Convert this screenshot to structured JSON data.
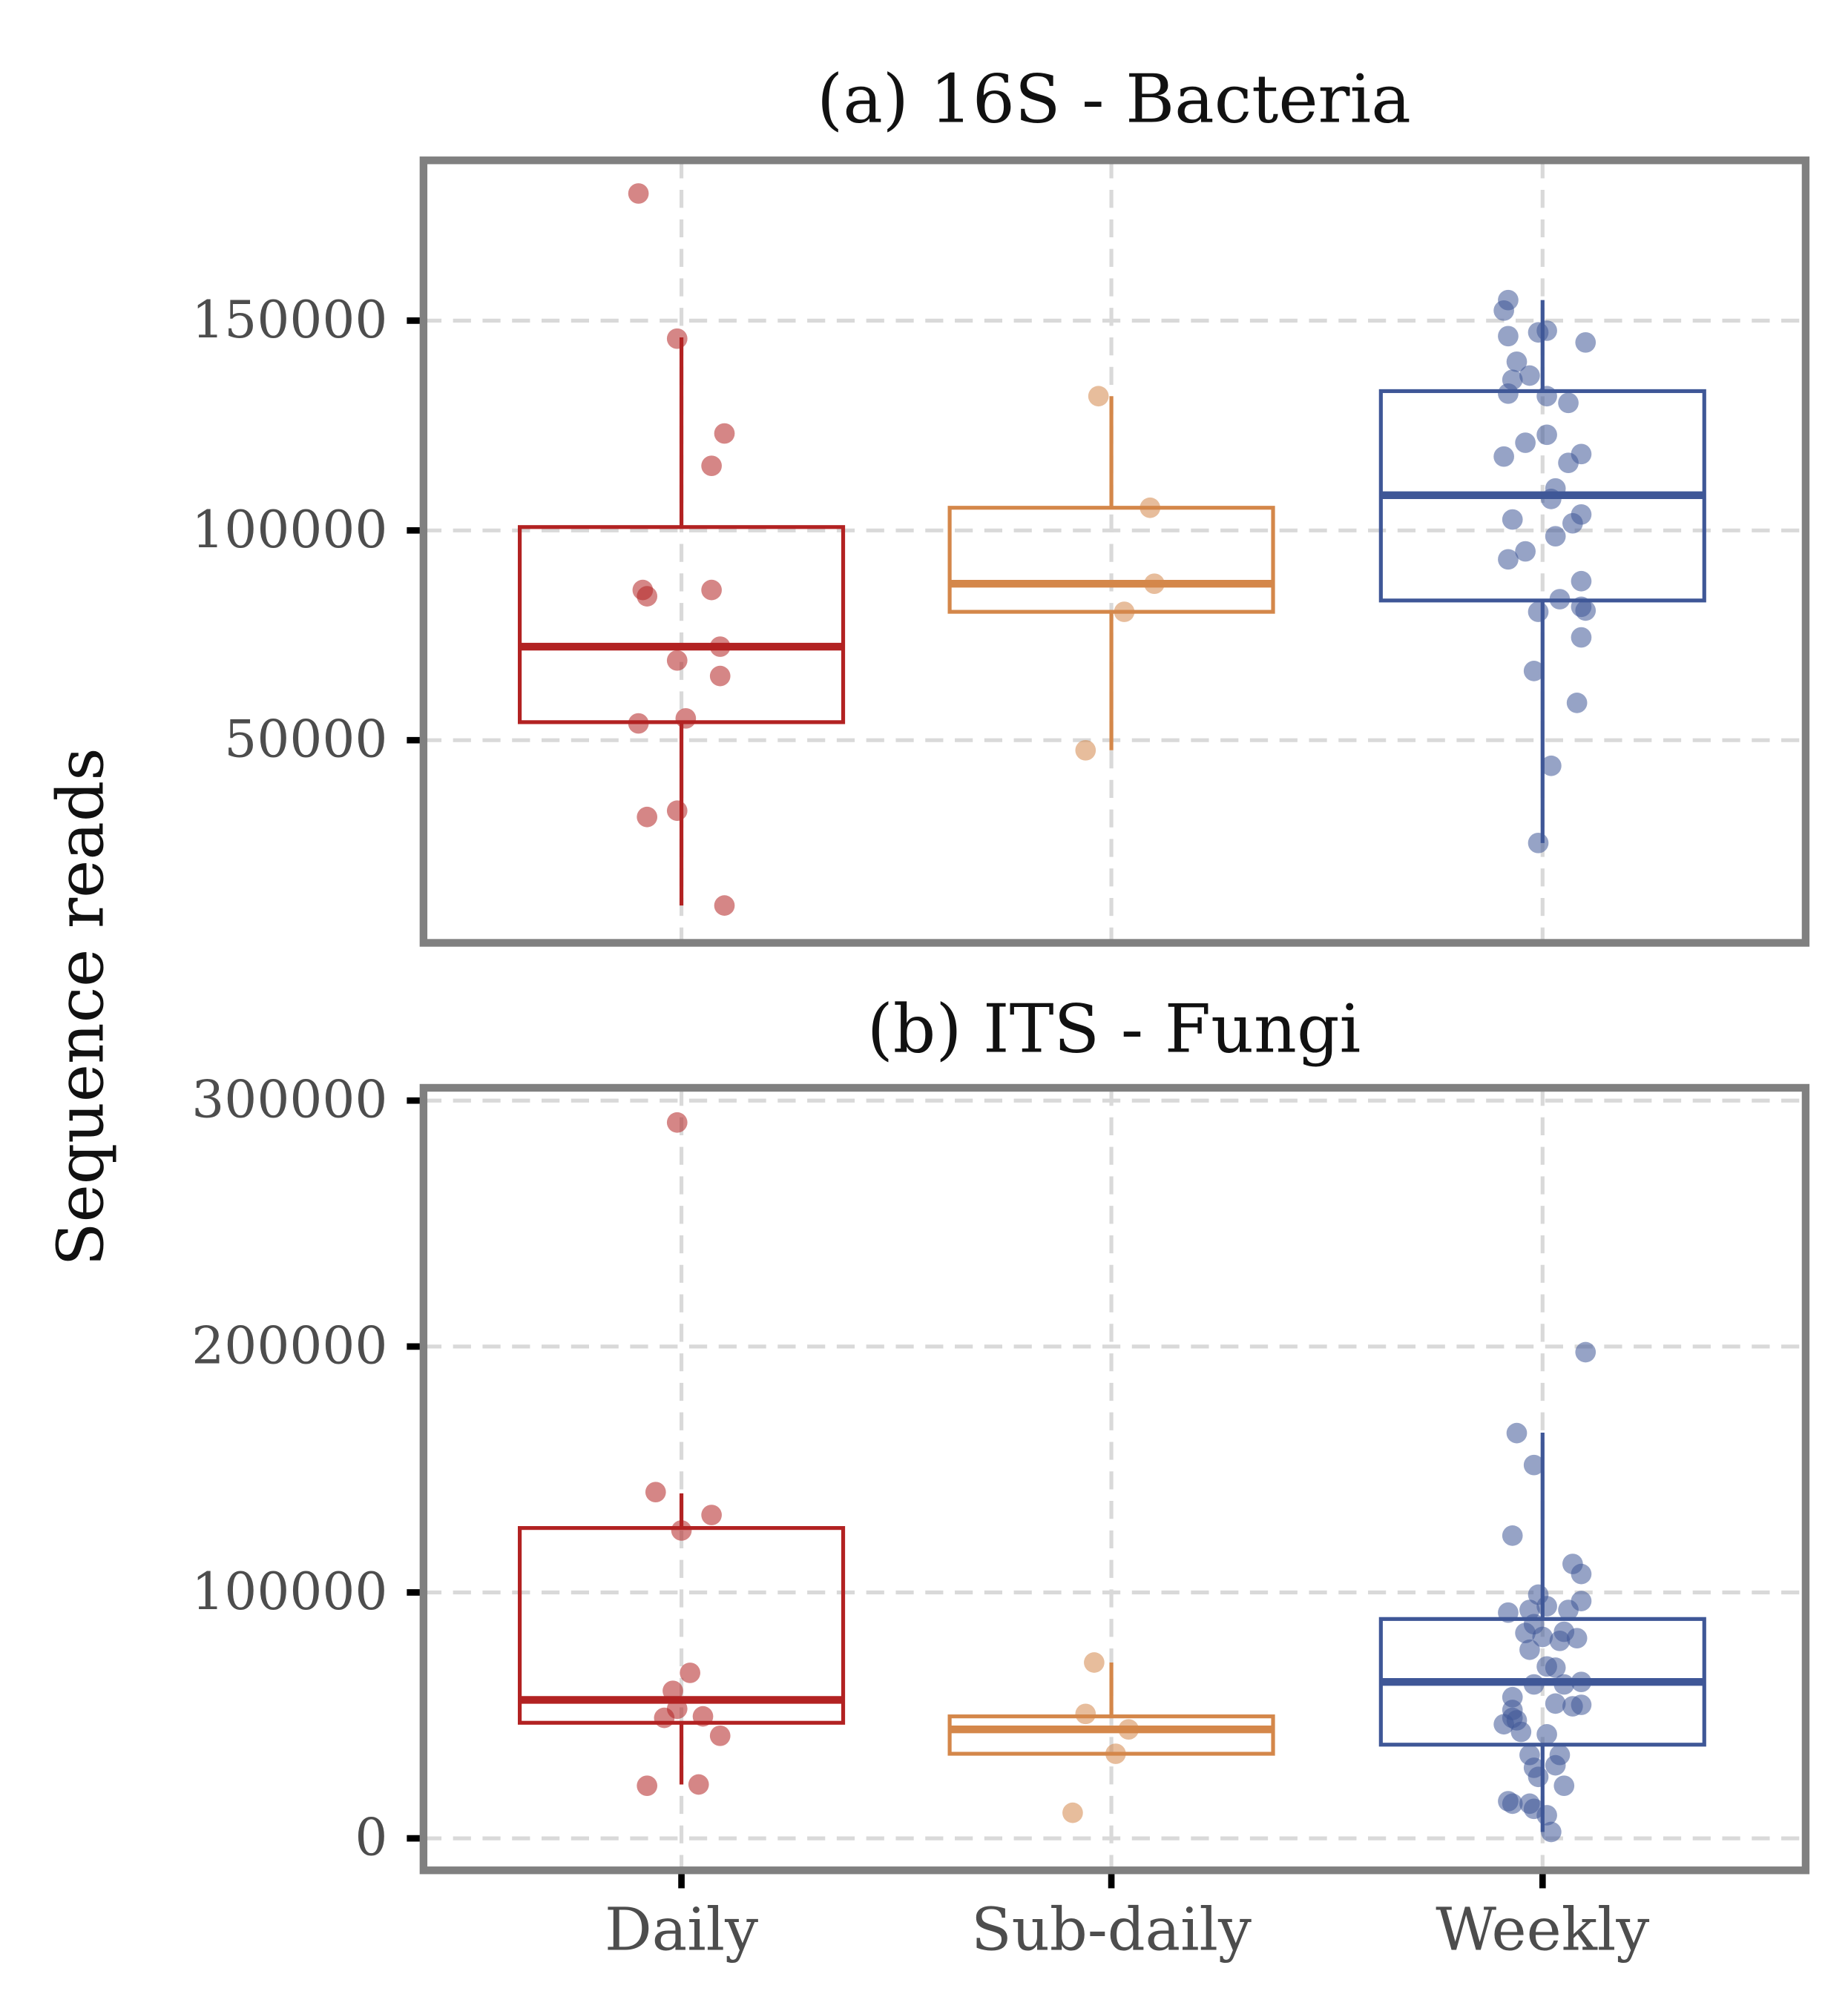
{
  "chart_data": {
    "type": "box",
    "ylabel": "Sequence reads",
    "categories": [
      "Daily",
      "Sub-daily",
      "Weekly"
    ],
    "colors": {
      "Daily": "#b22222",
      "Sub-daily": "#d4874a",
      "Weekly": "#3f5797"
    },
    "grid": true,
    "note": "point x-values are jitter offsets in category units",
    "panels": [
      {
        "title": "(a) 16S - Bacteria",
        "ylim": [
          1700,
          188200
        ],
        "yticks": [
          50000,
          100000,
          150000
        ],
        "ytick_labels": [
          "50000",
          "100000",
          "150000"
        ],
        "boxes": [
          {
            "q1": 54300,
            "median": 72300,
            "q3": 100800,
            "whisker_low": 10600,
            "whisker_high": 146000
          },
          {
            "q1": 80600,
            "median": 87300,
            "q3": 105400,
            "whisker_low": 47600,
            "whisker_high": 132000
          },
          {
            "q1": 83300,
            "median": 108400,
            "q3": 133200,
            "whisker_low": 25500,
            "whisker_high": 154900
          }
        ],
        "points": [
          [
            [
              -0.1,
              180300
            ],
            [
              -0.01,
              145700
            ],
            [
              0.1,
              123100
            ],
            [
              0.07,
              115400
            ],
            [
              -0.09,
              85800
            ],
            [
              -0.08,
              84300
            ],
            [
              0.07,
              85800
            ],
            [
              0.09,
              72300
            ],
            [
              -0.01,
              69000
            ],
            [
              0.09,
              65300
            ],
            [
              0.01,
              55200
            ],
            [
              -0.1,
              54000
            ],
            [
              -0.08,
              31700
            ],
            [
              -0.01,
              33200
            ],
            [
              0.1,
              10600
            ]
          ],
          [
            [
              -0.03,
              132000
            ],
            [
              0.09,
              105400
            ],
            [
              0.1,
              87300
            ],
            [
              0.03,
              80600
            ],
            [
              -0.06,
              47600
            ]
          ],
          [
            [
              -0.08,
              154900
            ],
            [
              -0.09,
              152400
            ],
            [
              -0.08,
              146300
            ],
            [
              -0.01,
              147200
            ],
            [
              0.01,
              147600
            ],
            [
              0.1,
              144800
            ],
            [
              -0.06,
              140200
            ],
            [
              -0.03,
              136900
            ],
            [
              -0.07,
              135900
            ],
            [
              -0.08,
              132600
            ],
            [
              0.01,
              132000
            ],
            [
              0.06,
              130400
            ],
            [
              0.01,
              122800
            ],
            [
              -0.04,
              120900
            ],
            [
              -0.09,
              117600
            ],
            [
              0.09,
              118200
            ],
            [
              0.06,
              116100
            ],
            [
              0.03,
              110000
            ],
            [
              0.02,
              107500
            ],
            [
              0.09,
              103800
            ],
            [
              -0.07,
              102600
            ],
            [
              0.07,
              101700
            ],
            [
              0.03,
              98600
            ],
            [
              -0.04,
              95000
            ],
            [
              -0.08,
              93100
            ],
            [
              0.09,
              87900
            ],
            [
              0.04,
              83600
            ],
            [
              0.09,
              81800
            ],
            [
              0.1,
              80900
            ],
            [
              -0.01,
              80600
            ],
            [
              0.09,
              74500
            ],
            [
              -0.02,
              66500
            ],
            [
              0.08,
              58900
            ],
            [
              0.02,
              43900
            ],
            [
              -0.01,
              25500
            ]
          ]
        ]
      },
      {
        "title": "(b) ITS - Fungi",
        "ylim": [
          -13000,
          305200
        ],
        "yticks": [
          0,
          100000,
          200000,
          300000
        ],
        "ytick_labels": [
          "0",
          "100000",
          "200000",
          "300000"
        ],
        "boxes": [
          {
            "q1": 47000,
            "median": 56300,
            "q3": 126200,
            "whisker_low": 21900,
            "whisker_high": 140300
          },
          {
            "q1": 34400,
            "median": 44300,
            "q3": 49600,
            "whisker_low": 34400,
            "whisker_high": 71500
          },
          {
            "q1": 38100,
            "median": 63600,
            "q3": 89200,
            "whisker_low": 2600,
            "whisker_high": 165000
          }
        ],
        "points": [
          [
            [
              -0.01,
              291100
            ],
            [
              -0.06,
              140800
            ],
            [
              0.07,
              131500
            ],
            [
              0.0,
              125200
            ],
            [
              0.02,
              67300
            ],
            [
              -0.02,
              60000
            ],
            [
              -0.01,
              52700
            ],
            [
              -0.04,
              49000
            ],
            [
              0.05,
              49600
            ],
            [
              0.09,
              41700
            ],
            [
              -0.08,
              21400
            ],
            [
              0.04,
              21900
            ]
          ],
          [
            [
              -0.04,
              71500
            ],
            [
              -0.06,
              50600
            ],
            [
              0.04,
              44300
            ],
            [
              0.01,
              34400
            ],
            [
              -0.09,
              10400
            ]
          ],
          [
            [
              0.1,
              197700
            ],
            [
              -0.06,
              164800
            ],
            [
              -0.02,
              151800
            ],
            [
              -0.07,
              123100
            ],
            [
              0.07,
              111600
            ],
            [
              0.09,
              107500
            ],
            [
              -0.01,
              99100
            ],
            [
              0.09,
              96500
            ],
            [
              0.01,
              94400
            ],
            [
              -0.08,
              91800
            ],
            [
              -0.03,
              92900
            ],
            [
              0.06,
              92900
            ],
            [
              -0.02,
              87100
            ],
            [
              0.05,
              84000
            ],
            [
              -0.04,
              83500
            ],
            [
              0.0,
              81900
            ],
            [
              0.08,
              81400
            ],
            [
              0.04,
              80300
            ],
            [
              -0.03,
              76700
            ],
            [
              0.01,
              69900
            ],
            [
              0.03,
              69400
            ],
            [
              -0.02,
              62600
            ],
            [
              0.05,
              62600
            ],
            [
              0.09,
              63600
            ],
            [
              -0.07,
              57400
            ],
            [
              0.03,
              54800
            ],
            [
              0.07,
              53700
            ],
            [
              0.09,
              54300
            ],
            [
              -0.07,
              52200
            ],
            [
              -0.07,
              49000
            ],
            [
              -0.06,
              48000
            ],
            [
              -0.09,
              46400
            ],
            [
              -0.05,
              43300
            ],
            [
              0.01,
              42300
            ],
            [
              -0.03,
              33900
            ],
            [
              0.04,
              33900
            ],
            [
              0.03,
              29700
            ],
            [
              -0.02,
              28700
            ],
            [
              -0.01,
              25000
            ],
            [
              0.05,
              21400
            ],
            [
              -0.08,
              15100
            ],
            [
              -0.07,
              14100
            ],
            [
              -0.03,
              14100
            ],
            [
              -0.02,
              12000
            ],
            [
              0.01,
              9400
            ],
            [
              0.02,
              2600
            ]
          ]
        ]
      }
    ]
  }
}
